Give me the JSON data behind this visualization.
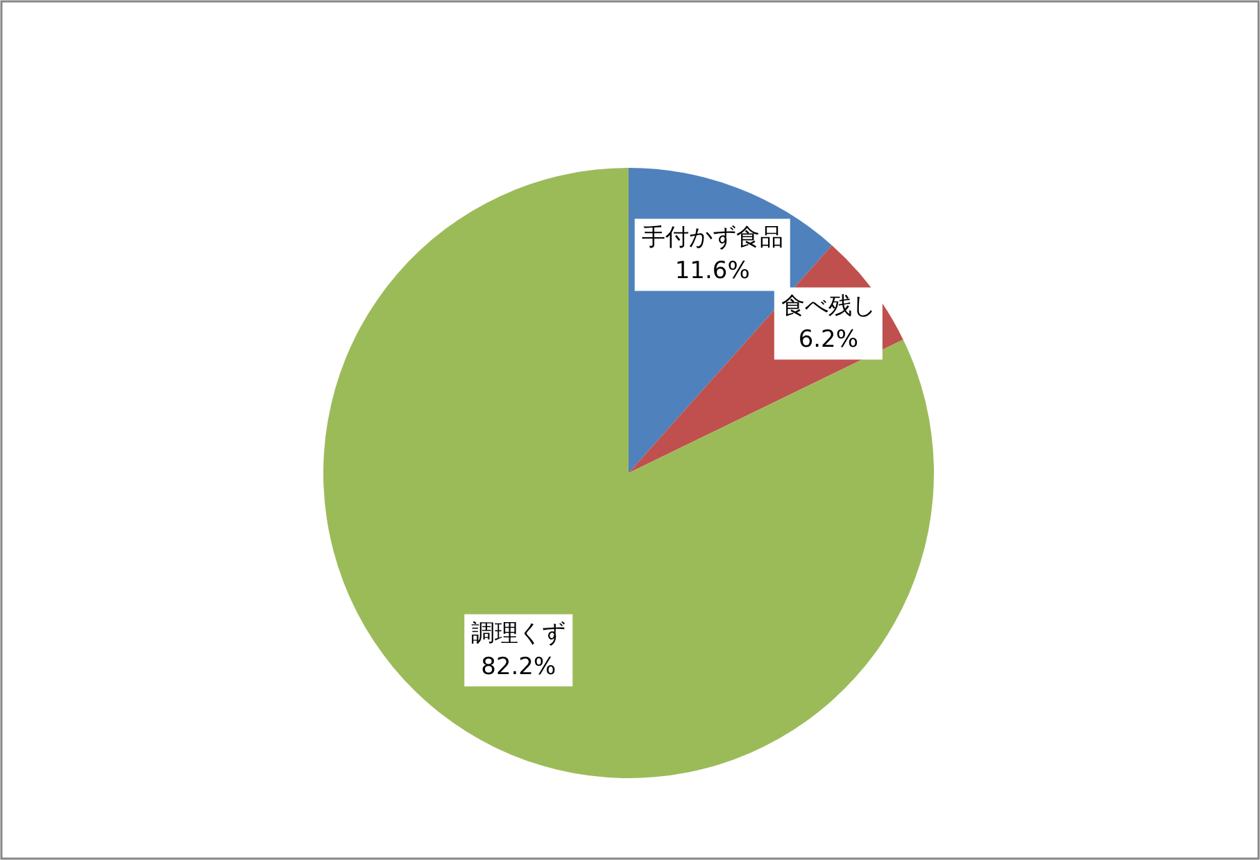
{
  "chart_data": {
    "type": "pie",
    "categories": [
      "手付かず食品",
      "食べ残し",
      "調理くず"
    ],
    "values": [
      11.6,
      6.2,
      82.2
    ],
    "colors": [
      "#4f81bd",
      "#c0504d",
      "#9bbb59"
    ],
    "value_labels": [
      "11.6%",
      "6.2%",
      "82.2%"
    ]
  }
}
